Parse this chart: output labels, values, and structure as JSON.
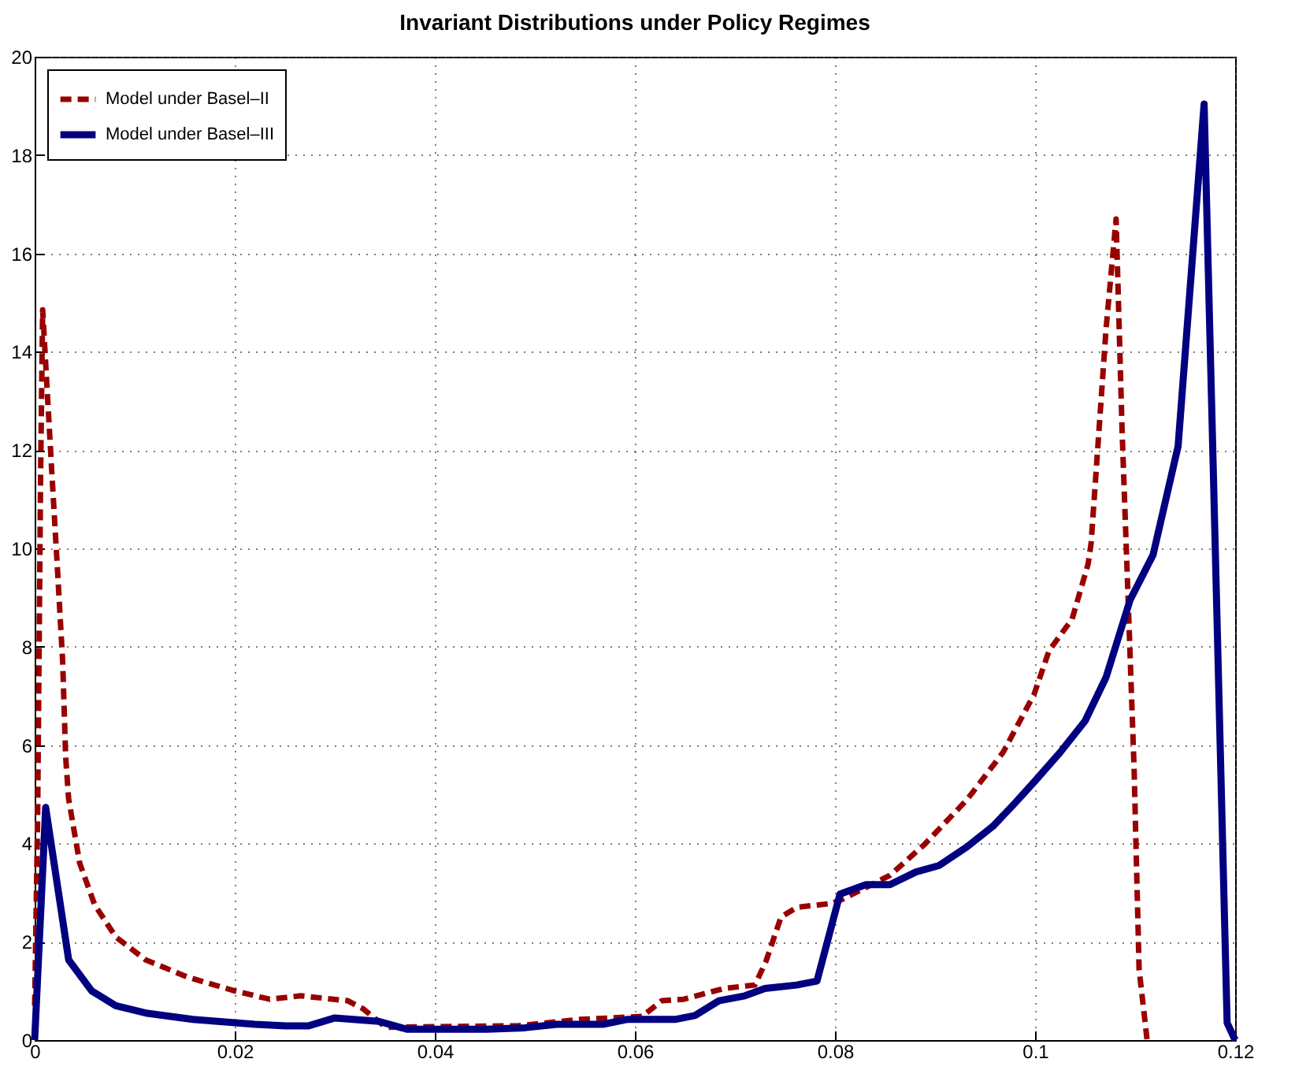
{
  "chart_data": {
    "type": "line",
    "title": "Invariant Distributions under Policy Regimes",
    "xlim": [
      0,
      0.12
    ],
    "xticks": [
      0,
      0.02,
      0.04,
      0.06,
      0.08,
      0.1,
      0.12
    ],
    "ylim": [
      0,
      20
    ],
    "yticks": [
      0,
      2,
      4,
      6,
      8,
      10,
      12,
      14,
      16,
      18,
      20
    ],
    "grid": true,
    "legend": "top left",
    "marker": "none",
    "series": [
      {
        "name": "Model under Basel–II",
        "color": "#990000",
        "line_style": "dashed",
        "x": [
          0,
          0.0003,
          0.0006,
          0.0008,
          0.0017,
          0.0023,
          0.0028,
          0.0031,
          0.0034,
          0.0045,
          0.006,
          0.0081,
          0.0111,
          0.0153,
          0.02,
          0.0235,
          0.0266,
          0.0313,
          0.0328,
          0.0351,
          0.0483,
          0.0545,
          0.0607,
          0.0627,
          0.0649,
          0.0689,
          0.072,
          0.0731,
          0.0746,
          0.0762,
          0.0797,
          0.0808,
          0.0855,
          0.089,
          0.0932,
          0.0968,
          0.0999,
          0.1014,
          0.1037,
          0.1053,
          0.1056,
          0.1071,
          0.1081,
          0.1087,
          0.1093,
          0.1099,
          0.1104,
          0.1112
        ],
        "values": [
          0.7,
          4.6,
          11.6,
          14.85,
          11.6,
          9.5,
          7.7,
          5.75,
          4.9,
          3.6,
          2.75,
          2.1,
          1.63,
          1.28,
          1.0,
          0.83,
          0.9,
          0.8,
          0.64,
          0.26,
          0.29,
          0.42,
          0.48,
          0.8,
          0.83,
          1.05,
          1.12,
          1.6,
          2.5,
          2.7,
          2.78,
          2.87,
          3.35,
          3.99,
          4.89,
          5.85,
          7.03,
          7.92,
          8.56,
          9.68,
          10.1,
          14.47,
          16.7,
          12.4,
          8.98,
          5.53,
          1.44,
          0
        ]
      },
      {
        "name": "Model under Basel–III",
        "color": "#000080",
        "line_style": "solid",
        "x": [
          0,
          0.0011,
          0.0034,
          0.0057,
          0.0081,
          0.0111,
          0.0158,
          0.022,
          0.0251,
          0.0274,
          0.03,
          0.0344,
          0.0372,
          0.0452,
          0.049,
          0.0522,
          0.0568,
          0.0592,
          0.064,
          0.066,
          0.0684,
          0.071,
          0.073,
          0.0762,
          0.0782,
          0.0805,
          0.0831,
          0.0855,
          0.0881,
          0.0904,
          0.0932,
          0.0958,
          0.0979,
          0.1,
          0.1025,
          0.105,
          0.1071,
          0.1095,
          0.1118,
          0.1143,
          0.1169,
          0.1192,
          0.12
        ],
        "values": [
          0,
          4.73,
          1.63,
          1.0,
          0.7,
          0.55,
          0.42,
          0.32,
          0.29,
          0.29,
          0.45,
          0.38,
          0.22,
          0.22,
          0.25,
          0.32,
          0.32,
          0.42,
          0.42,
          0.5,
          0.8,
          0.9,
          1.05,
          1.12,
          1.2,
          2.97,
          3.16,
          3.16,
          3.42,
          3.55,
          3.93,
          4.35,
          4.8,
          5.27,
          5.85,
          6.49,
          7.38,
          8.95,
          9.87,
          12.08,
          19.04,
          0.35,
          0
        ]
      }
    ]
  }
}
